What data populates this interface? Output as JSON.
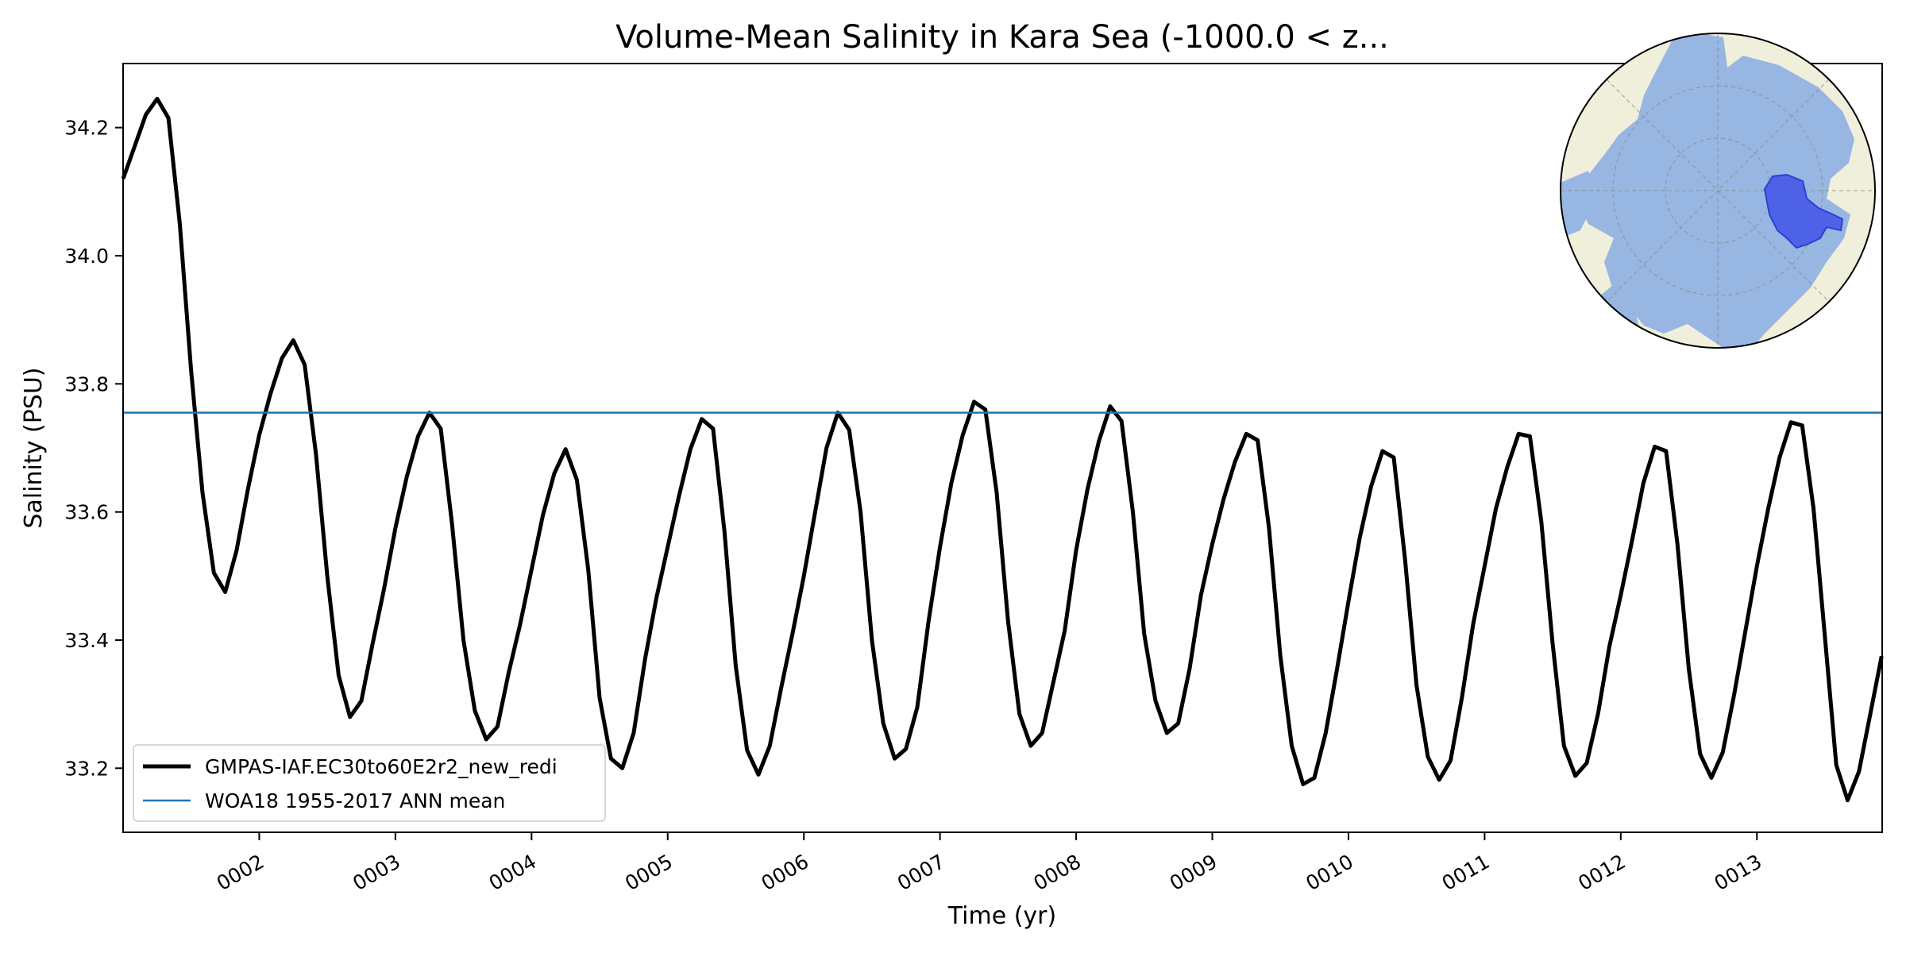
{
  "chart_data": {
    "type": "line",
    "title": "Volume-Mean Salinity in Kara Sea (-1000.0 < z...",
    "xlabel": "Time (yr)",
    "ylabel": "Salinity (PSU)",
    "xlim": [
      1.0,
      13.92
    ],
    "ylim": [
      33.1,
      34.3
    ],
    "x_ticks": [
      2,
      3,
      4,
      5,
      6,
      7,
      8,
      9,
      10,
      11,
      12,
      13
    ],
    "x_tick_labels": [
      "0002",
      "0003",
      "0004",
      "0005",
      "0006",
      "0007",
      "0008",
      "0009",
      "0010",
      "0011",
      "0012",
      "0013"
    ],
    "y_ticks": [
      33.2,
      33.4,
      33.6,
      33.8,
      34.0,
      34.2
    ],
    "y_tick_labels": [
      "33.2",
      "33.4",
      "33.6",
      "33.8",
      "34.0",
      "34.2"
    ],
    "grid": false,
    "legend_placement": "lower-left",
    "series": [
      {
        "name": "GMPAS-IAF.EC30to60E2r2_new_redi",
        "color": "#000000",
        "x_start_year": 1.0,
        "step_years": 0.08333,
        "values": [
          34.12,
          34.17,
          34.22,
          34.245,
          34.215,
          34.05,
          33.82,
          33.63,
          33.505,
          33.475,
          33.54,
          33.635,
          33.72,
          33.785,
          33.84,
          33.868,
          33.83,
          33.69,
          33.5,
          33.345,
          33.28,
          33.305,
          33.395,
          33.48,
          33.575,
          33.655,
          33.718,
          33.755,
          33.73,
          33.58,
          33.4,
          33.29,
          33.245,
          33.265,
          33.35,
          33.425,
          33.51,
          33.595,
          33.66,
          33.698,
          33.65,
          33.51,
          33.31,
          33.215,
          33.2,
          33.255,
          33.37,
          33.465,
          33.545,
          33.625,
          33.698,
          33.745,
          33.73,
          33.57,
          33.36,
          33.228,
          33.19,
          33.235,
          33.325,
          33.41,
          33.5,
          33.6,
          33.7,
          33.755,
          33.728,
          33.6,
          33.4,
          33.27,
          33.215,
          33.23,
          33.295,
          33.43,
          33.545,
          33.645,
          33.72,
          33.772,
          33.76,
          33.63,
          33.43,
          33.285,
          33.235,
          33.255,
          33.335,
          33.415,
          33.54,
          33.635,
          33.71,
          33.765,
          33.742,
          33.6,
          33.41,
          33.305,
          33.255,
          33.27,
          33.355,
          33.47,
          33.55,
          33.62,
          33.678,
          33.722,
          33.712,
          33.575,
          33.375,
          33.235,
          33.175,
          33.185,
          33.255,
          33.355,
          33.46,
          33.56,
          33.64,
          33.695,
          33.685,
          33.525,
          33.33,
          33.218,
          33.182,
          33.212,
          33.31,
          33.425,
          33.515,
          33.605,
          33.67,
          33.722,
          33.718,
          33.585,
          33.395,
          33.235,
          33.188,
          33.208,
          33.285,
          33.39,
          33.47,
          33.555,
          33.645,
          33.702,
          33.695,
          33.55,
          33.355,
          33.222,
          33.185,
          33.225,
          33.315,
          33.415,
          33.515,
          33.605,
          33.685,
          33.74,
          33.735,
          33.605,
          33.405,
          33.205,
          33.15,
          33.195,
          33.285,
          33.375
        ]
      },
      {
        "name": "WOA18 1955-2017 ANN mean",
        "color": "#1f77b4",
        "type": "hline",
        "value": 33.755
      }
    ]
  },
  "map_inset": {
    "region": "Kara Sea",
    "ocean_color": "#97b6e1",
    "land_color": "#efefdb",
    "region_color": "#4a5ee8"
  }
}
